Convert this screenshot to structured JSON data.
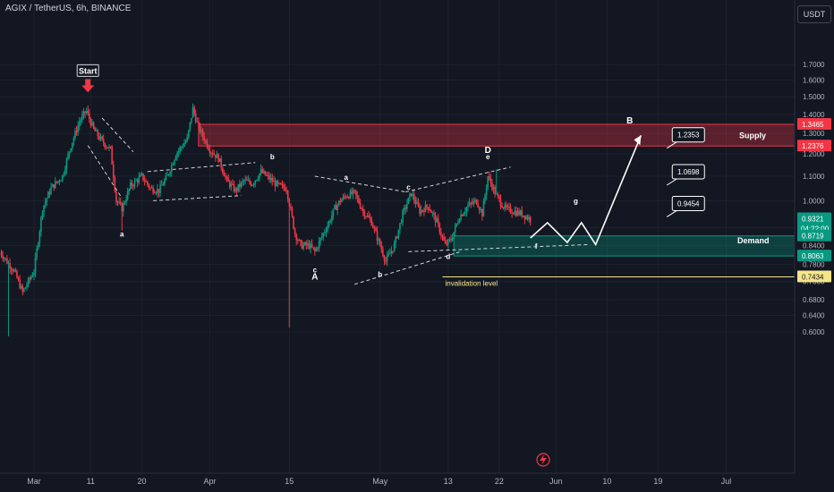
{
  "header": {
    "symbol_label": "AGIX / TetherUS, 6h, BINANCE",
    "currency": "USDT"
  },
  "chart_data": {
    "type": "candlestick",
    "title": "AGIX / TetherUS, 6h, BINANCE",
    "y_unit": "USDT",
    "ylim": [
      0.555,
      1.83
    ],
    "x_ticks": [
      {
        "label": "Mar",
        "t": 0
      },
      {
        "label": "11",
        "t": 10
      },
      {
        "label": "20",
        "t": 19
      },
      {
        "label": "Apr",
        "t": 31
      },
      {
        "label": "15",
        "t": 45
      },
      {
        "label": "May",
        "t": 61
      },
      {
        "label": "13",
        "t": 73
      },
      {
        "label": "22",
        "t": 82
      },
      {
        "label": "Jun",
        "t": 92
      },
      {
        "label": "10",
        "t": 101
      },
      {
        "label": "19",
        "t": 110
      },
      {
        "label": "Jul",
        "t": 122
      }
    ],
    "y_ticks": [
      "1.7000",
      "1.6000",
      "1.5000",
      "1.4000",
      "1.3000",
      "1.2000",
      "1.1000",
      "1.0000",
      "0.9000",
      "0.8400",
      "0.7800",
      "0.7300",
      "0.6800",
      "0.6400",
      "0.6000"
    ],
    "price_badges": [
      {
        "label": "1.3465",
        "value": 1.3465,
        "color": "#f23645"
      },
      {
        "label": "1.2376",
        "value": 1.2376,
        "color": "#f23645"
      },
      {
        "label": "0.9321",
        "value": 0.9321,
        "color": "#089981",
        "sub": "04:22:00"
      },
      {
        "label": "0.8719",
        "value": 0.8719,
        "color": "#089981"
      },
      {
        "label": "0.8063",
        "value": 0.8063,
        "color": "#089981"
      },
      {
        "label": "0.7434",
        "value": 0.7434,
        "color": "#f7e58a"
      }
    ],
    "zones": [
      {
        "name": "Supply",
        "low": 1.2376,
        "high": 1.3465,
        "t_start": 29,
        "color": "#f23645"
      },
      {
        "name": "Demand",
        "low": 0.8063,
        "high": 0.8719,
        "t_start": 74,
        "color": "#089981"
      }
    ],
    "invalidation": {
      "label": "invalidation level",
      "value": 0.7434,
      "t_start": 72
    },
    "targets": [
      {
        "label": "1.2353",
        "value": 1.2353
      },
      {
        "label": "1.0698",
        "value": 1.0698
      },
      {
        "label": "0.9454",
        "value": 0.9454
      }
    ],
    "projection": {
      "points": [
        [
          87.5,
          0.865
        ],
        [
          90.5,
          0.918
        ],
        [
          94,
          0.85
        ],
        [
          96.5,
          0.918
        ],
        [
          99,
          0.843
        ],
        [
          107,
          1.29
        ]
      ]
    },
    "wave_labels": [
      {
        "text": "Start",
        "t": 9.5,
        "value": 1.64,
        "boxed": true
      },
      {
        "text": "a",
        "t": 15.5,
        "value": 0.87
      },
      {
        "text": "b",
        "t": 42,
        "value": 1.175
      },
      {
        "text": "c",
        "t": 49.5,
        "value": 0.756
      },
      {
        "text": "A",
        "t": 49.5,
        "value": 0.735
      },
      {
        "text": "a",
        "t": 55,
        "value": 1.085
      },
      {
        "text": "c",
        "t": 66,
        "value": 1.044
      },
      {
        "text": "b",
        "t": 61,
        "value": 0.743
      },
      {
        "text": "d",
        "t": 73,
        "value": 0.797
      },
      {
        "text": "D",
        "t": 80,
        "value": 1.205
      },
      {
        "text": "e",
        "t": 80,
        "value": 1.175
      },
      {
        "text": "f",
        "t": 88.5,
        "value": 0.829
      },
      {
        "text": "g",
        "t": 95.5,
        "value": 0.99
      },
      {
        "text": "B",
        "t": 105,
        "value": 1.35
      }
    ]
  },
  "annotations": {
    "start_label": "Start",
    "supply_label": "Supply",
    "demand_label": "Demand",
    "invalidation_label": "invalidation level"
  }
}
